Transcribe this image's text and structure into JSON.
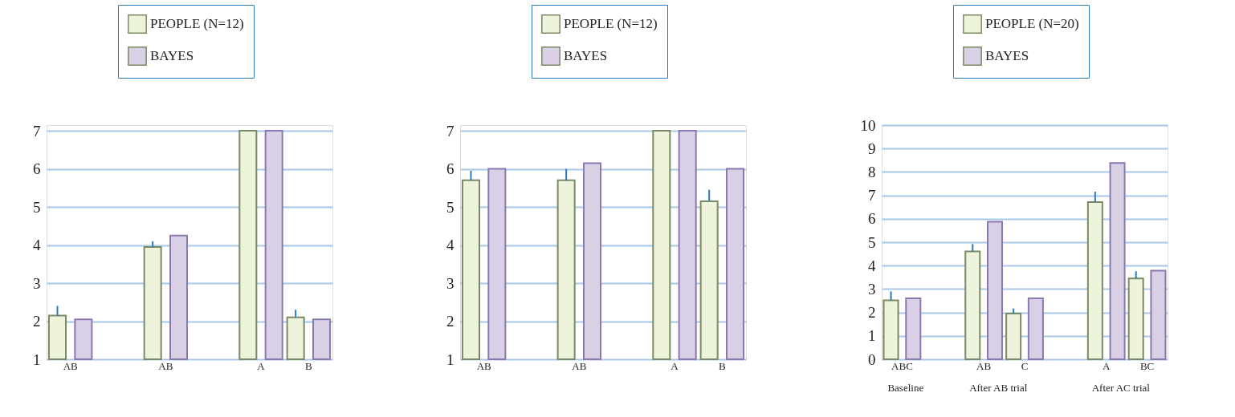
{
  "chart_data": [
    {
      "type": "bar",
      "categories": [
        "AB",
        null,
        "AB",
        null,
        "A",
        "B"
      ],
      "ylim": [
        1,
        7.15
      ],
      "yticks": [
        1,
        2,
        3,
        4,
        5,
        6,
        7
      ],
      "grid": "y",
      "legend": "top",
      "series": [
        {
          "name": "PEOPLE (N=12)",
          "color": "#eef3dc",
          "values": [
            2.15,
            null,
            3.95,
            null,
            7.0,
            2.1
          ],
          "errors": [
            [
              2.15,
              2.4
            ],
            null,
            [
              3.95,
              4.1
            ],
            null,
            null,
            [
              2.1,
              2.3
            ]
          ]
        },
        {
          "name": "BAYES",
          "color": "#d9d0e6",
          "values": [
            2.05,
            null,
            4.25,
            null,
            7.0,
            2.05
          ]
        }
      ]
    },
    {
      "type": "bar",
      "categories": [
        "AB",
        null,
        "AB",
        null,
        "A",
        "B"
      ],
      "ylim": [
        1,
        7.15
      ],
      "yticks": [
        1,
        2,
        3,
        4,
        5,
        6,
        7
      ],
      "grid": "y",
      "legend": "top",
      "series": [
        {
          "name": "PEOPLE (N=12)",
          "color": "#eef3dc",
          "values": [
            5.7,
            null,
            5.7,
            null,
            7.0,
            5.15
          ],
          "errors": [
            [
              5.7,
              5.95
            ],
            null,
            [
              5.7,
              6.0
            ],
            null,
            null,
            [
              5.15,
              5.45
            ]
          ]
        },
        {
          "name": "BAYES",
          "color": "#d9d0e6",
          "values": [
            6.0,
            null,
            6.15,
            null,
            7.0,
            6.0
          ]
        }
      ]
    },
    {
      "type": "bar",
      "categories": [
        "ABC",
        null,
        "AB",
        "C",
        null,
        "A",
        "BC"
      ],
      "ylim": [
        0,
        10
      ],
      "yticks": [
        0,
        1,
        2,
        3,
        4,
        5,
        6,
        7,
        8,
        9,
        10
      ],
      "grid": "y",
      "legend": "top",
      "annotations": [
        "Baseline",
        "After AB trial",
        "After AC trial"
      ],
      "series": [
        {
          "name": "PEOPLE (N=20)",
          "color": "#eef3dc",
          "values": [
            2.52,
            null,
            4.61,
            1.95,
            null,
            6.71,
            3.45
          ],
          "errors": [
            [
              2.52,
              2.9
            ],
            null,
            [
              4.61,
              4.92
            ],
            [
              1.95,
              2.17
            ],
            null,
            [
              6.71,
              7.16
            ],
            [
              3.45,
              3.76
            ]
          ]
        },
        {
          "name": "BAYES",
          "color": "#d9d0e6",
          "values": [
            2.6,
            null,
            5.87,
            2.6,
            null,
            8.38,
            3.78
          ]
        }
      ]
    }
  ]
}
